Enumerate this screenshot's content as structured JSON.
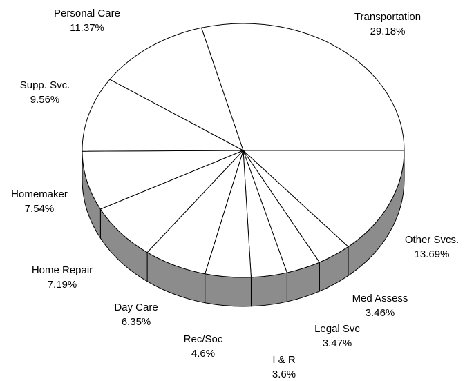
{
  "chart_data": {
    "type": "pie",
    "categories": [
      "Transportation",
      "Other Svcs.",
      "Med Assess",
      "Legal Svc",
      "I & R",
      "Rec/Soc",
      "Day Care",
      "Home Repair",
      "Homemaker",
      "Supp. Svc.",
      "Personal Care"
    ],
    "values": [
      29.18,
      13.69,
      3.46,
      3.47,
      3.6,
      4.6,
      6.35,
      7.19,
      7.54,
      9.56,
      11.37
    ],
    "value_labels": [
      "29.18%",
      "13.69%",
      "3.46%",
      "3.47%",
      "3.6%",
      "4.6%",
      "6.35%",
      "7.19%",
      "7.54%",
      "9.56%",
      "11.37%"
    ],
    "color": "#ffffff",
    "side_color": "#8c8c8c"
  }
}
